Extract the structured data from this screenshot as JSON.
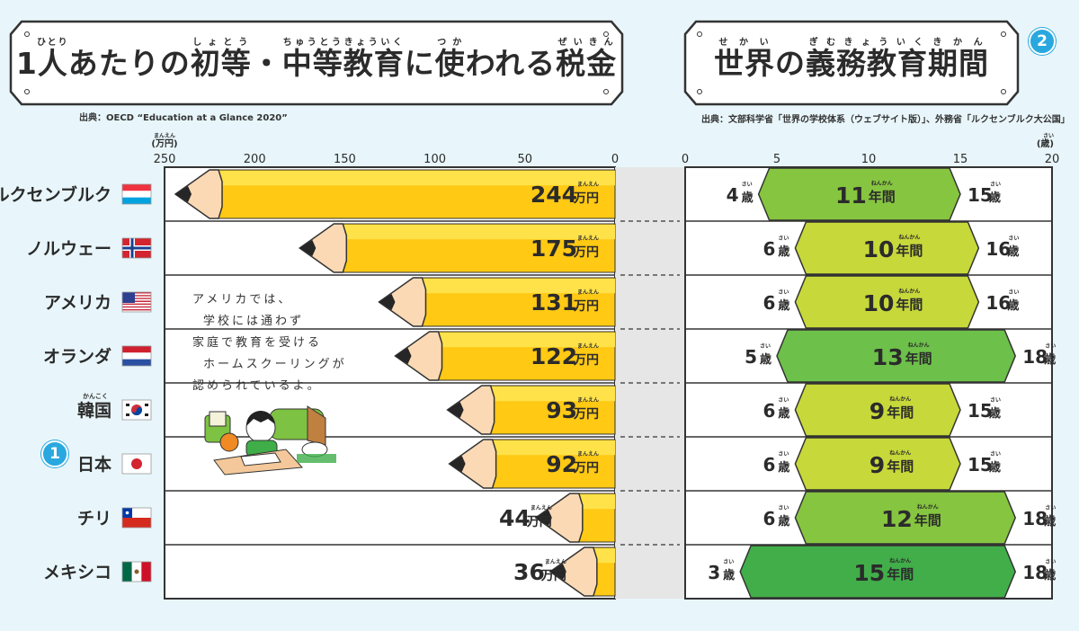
{
  "left": {
    "title_segments": [
      {
        "text": "1"
      },
      {
        "text": "人",
        "ruby": "ひとり"
      },
      {
        "text": "あたりの"
      },
      {
        "text": "初等",
        "ruby": "しょとう"
      },
      {
        "text": "・"
      },
      {
        "text": "中等教育",
        "ruby": "ちゅうとうきょういく"
      },
      {
        "text": "に"
      },
      {
        "text": "使",
        "ruby": "つか"
      },
      {
        "text": "われる"
      },
      {
        "text": "税金",
        "ruby": "ぜいきん"
      }
    ],
    "source": "出典：OECD “Education at a Glance 2020”",
    "badge": "1"
  },
  "right": {
    "title_segments": [
      {
        "text": "世界",
        "ruby": "せかい"
      },
      {
        "text": "の"
      },
      {
        "text": "義務教育",
        "ruby": "ぎむきょういく"
      },
      {
        "text": "期間",
        "ruby": "きかん"
      }
    ],
    "source": "出典：文部科学省「世界の学校体系（ウェブサイト版）」、外務省「ルクセンブルク大公国」",
    "badge": "2"
  },
  "countries": [
    {
      "name": "ルクセンブルク",
      "flag": "luxembourg-flag"
    },
    {
      "name": "ノルウェー",
      "flag": "norway-flag"
    },
    {
      "name": "アメリカ",
      "flag": "usa-flag"
    },
    {
      "name": "オランダ",
      "flag": "netherlands-flag"
    },
    {
      "name": "韓国",
      "ruby": "かんこく",
      "flag": "korea-flag"
    },
    {
      "name": "日本",
      "flag": "japan-flag"
    },
    {
      "name": "チリ",
      "flag": "chile-flag"
    },
    {
      "name": "メキシコ",
      "flag": "mexico-flag"
    }
  ],
  "note": [
    "アメリカでは、",
    "学校には通わず",
    "家庭で教育を受ける",
    "ホームスクーリングが",
    "認められているよ。"
  ],
  "chart_data": [
    {
      "type": "bar",
      "orientation": "horizontal-reversed",
      "categories": [
        "ルクセンブルク",
        "ノルウェー",
        "アメリカ",
        "オランダ",
        "韓国",
        "日本",
        "チリ",
        "メキシコ"
      ],
      "values": [
        244,
        175,
        131,
        122,
        93,
        92,
        44,
        36
      ],
      "value_unit": "万円",
      "value_unit_ruby": "まんえん",
      "xlabel": "(万円)",
      "xlabel_ruby": "まんえん",
      "xlim": [
        250,
        0
      ],
      "xticks": [
        250,
        200,
        150,
        100,
        50,
        0
      ],
      "bar_color": "#ffc914",
      "bar_highlight": "#ffe24a"
    },
    {
      "type": "range-bar",
      "categories": [
        "ルクセンブルク",
        "ノルウェー",
        "アメリカ",
        "オランダ",
        "韓国",
        "日本",
        "チリ",
        "メキシコ"
      ],
      "start_ages": [
        4,
        6,
        6,
        5,
        6,
        6,
        6,
        3
      ],
      "end_ages": [
        15,
        16,
        16,
        18,
        15,
        15,
        18,
        18
      ],
      "durations": [
        11,
        10,
        10,
        13,
        9,
        9,
        12,
        15
      ],
      "age_unit": "歳",
      "age_unit_ruby": "さい",
      "duration_unit": "年間",
      "duration_unit_ruby": "ねんかん",
      "xlabel": "(歳)",
      "xlabel_ruby": "さい",
      "xlim": [
        0,
        20
      ],
      "xticks": [
        0,
        5,
        10,
        15,
        20
      ],
      "colors": [
        "#86c540",
        "#c7d83a",
        "#c7d83a",
        "#6dc04a",
        "#c7d83a",
        "#c7d83a",
        "#86c540",
        "#41ae4a"
      ]
    }
  ]
}
